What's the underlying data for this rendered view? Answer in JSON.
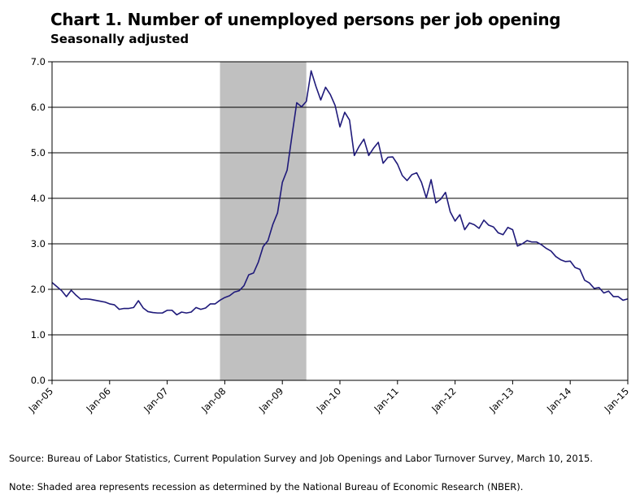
{
  "chart_data": {
    "type": "line",
    "title": "Chart 1. Number of unemployed persons per job opening",
    "subtitle": "Seasonally adjusted",
    "xlabel": "",
    "ylabel": "",
    "ylim": [
      0,
      7
    ],
    "yticks": [
      "0.0",
      "1.0",
      "2.0",
      "3.0",
      "4.0",
      "5.0",
      "6.0",
      "7.0"
    ],
    "xticks": [
      "Jan-05",
      "Jan-06",
      "Jan-07",
      "Jan-08",
      "Jan-09",
      "Jan-10",
      "Jan-11",
      "Jan-12",
      "Jan-13",
      "Jan-14",
      "Jan-15"
    ],
    "grid": true,
    "legend": "none",
    "colors": {
      "line": "#1f1a7a",
      "recession": "#c0c0c0",
      "grid": "#000000"
    },
    "recession": {
      "start_month_index": 35,
      "end_month_index": 53
    },
    "start": "Jan-05",
    "series": [
      {
        "values": [
          2.15,
          2.06,
          1.97,
          1.84,
          1.98,
          1.87,
          1.78,
          1.79,
          1.78,
          1.76,
          1.74,
          1.72,
          1.68,
          1.66,
          1.56,
          1.58,
          1.58,
          1.6,
          1.75,
          1.59,
          1.51,
          1.49,
          1.48,
          1.48,
          1.54,
          1.54,
          1.44,
          1.5,
          1.48,
          1.5,
          1.6,
          1.56,
          1.59,
          1.68,
          1.68,
          1.76,
          1.82,
          1.86,
          1.94,
          1.97,
          2.08,
          2.32,
          2.36,
          2.6,
          2.94,
          3.07,
          3.42,
          3.68,
          4.35,
          4.62,
          5.37,
          6.1,
          6.01,
          6.13,
          6.8,
          6.46,
          6.16,
          6.44,
          6.28,
          6.04,
          5.57,
          5.89,
          5.72,
          4.94,
          5.14,
          5.3,
          4.94,
          5.1,
          5.23,
          4.77,
          4.9,
          4.91,
          4.75,
          4.5,
          4.39,
          4.52,
          4.56,
          4.35,
          4.01,
          4.41,
          3.9,
          3.98,
          4.13,
          3.7,
          3.5,
          3.64,
          3.31,
          3.46,
          3.42,
          3.34,
          3.52,
          3.41,
          3.37,
          3.24,
          3.2,
          3.36,
          3.31,
          2.95,
          3.0,
          3.07,
          3.04,
          3.04,
          2.98,
          2.9,
          2.84,
          2.72,
          2.65,
          2.61,
          2.62,
          2.48,
          2.44,
          2.2,
          2.14,
          2.02,
          2.04,
          1.92,
          1.96,
          1.84,
          1.84,
          1.76,
          1.79
        ]
      }
    ]
  },
  "footnotes": {
    "source": "Source: Bureau of Labor Statistics, Current Population Survey and Job Openings and Labor Turnover Survey, March 10, 2015.",
    "note": "Note: Shaded area represents recession as determined by the National Bureau of Economic Research (NBER)."
  }
}
